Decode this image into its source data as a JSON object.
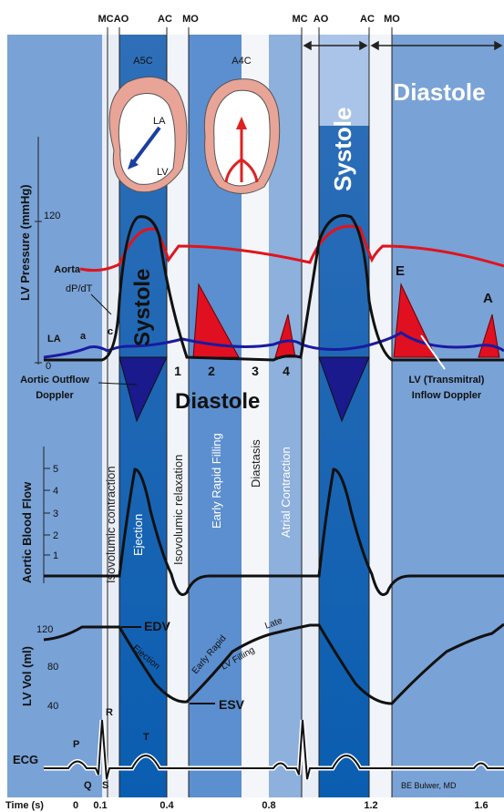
{
  "markers": [
    "MC",
    "AO",
    "AC",
    "MO",
    "MC",
    "AO",
    "AC",
    "MO"
  ],
  "header": {
    "view_a": "A5C",
    "view_b": "A4C",
    "systole": "Systole",
    "diastole": "Diastole"
  },
  "heart": {
    "la": "LA",
    "lv": "LV"
  },
  "pressure": {
    "axis_title": "LV Pressure (mmHg)",
    "ticks": [
      "120",
      "0"
    ],
    "aorta": "Aorta",
    "dpdt": "dP/dT",
    "la": "LA",
    "a_wave": "a",
    "c_wave": "c",
    "e_wave": "E",
    "a_doppler": "A",
    "systole": "Systole",
    "diastole": "Diastole",
    "phase_numbers": [
      "1",
      "2",
      "3",
      "4"
    ],
    "outflow": [
      "Aortic Outflow",
      "Doppler"
    ],
    "inflow": [
      "LV (Transmitral)",
      "Inflow Doppler"
    ]
  },
  "phases": [
    "Isovolumic contraction",
    "Ejection",
    "Isovolumic relaxation",
    "Early Rapid Filling",
    "Diastasis",
    "Atrial Contraction"
  ],
  "flow": {
    "axis_title": "Aortic Blood Flow",
    "ticks": [
      "5",
      "4",
      "3",
      "2",
      "1"
    ]
  },
  "volume": {
    "axis_title": "LV Vol (ml)",
    "ticks": [
      "120",
      "80",
      "40"
    ],
    "edv": "EDV",
    "esv": "ESV",
    "ejection": "Ejection",
    "early_rapid": "Early Rapid",
    "lv_filling": "LV Filling",
    "late": "Late"
  },
  "ecg": {
    "label": "ECG",
    "p": "P",
    "r": "R",
    "t": "T",
    "q": "Q",
    "s": "S",
    "credit": "BE Bulwer, MD"
  },
  "time_axis": {
    "title": "Time (s)",
    "ticks": [
      "0",
      "0.1",
      "0.4",
      "0.8",
      "1.2",
      "1.6"
    ]
  }
}
